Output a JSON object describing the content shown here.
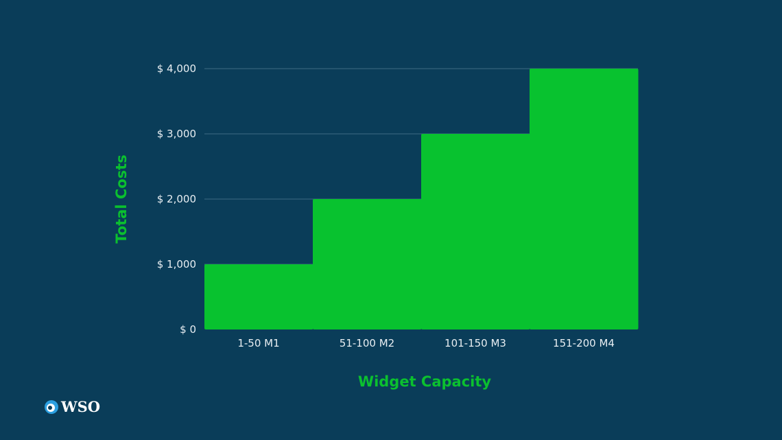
{
  "chart_data": {
    "type": "bar",
    "title": "",
    "xlabel": "Widget Capacity",
    "ylabel": "Total Costs",
    "categories": [
      "1-50 M1",
      "51-100 M2",
      "101-150 M3",
      "151-200 M4"
    ],
    "values": [
      1000,
      2000,
      3000,
      4000
    ],
    "ylim": [
      0,
      4000
    ],
    "yticks": [
      0,
      1000,
      2000,
      3000,
      4000
    ],
    "ytick_labels": [
      "$ 0",
      "$ 1,000",
      "$ 2,000",
      "$ 3,000",
      "$ 4,000"
    ],
    "grid": true,
    "bar_color": "#08c22f",
    "gridline_color": "#3f6a83"
  },
  "logo": {
    "text": "WSO"
  }
}
